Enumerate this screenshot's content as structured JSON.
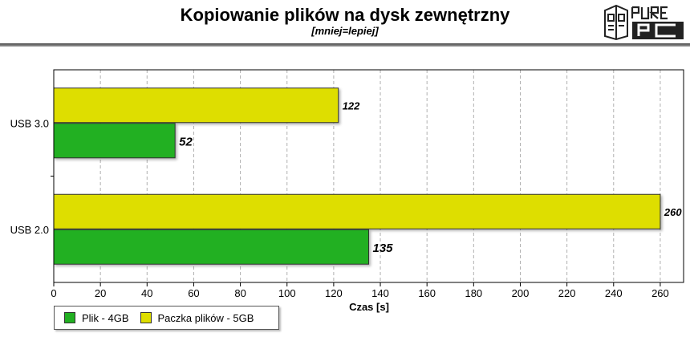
{
  "header": {
    "title": "Kopiowanie plików na dysk zewnętrzny",
    "subtitle": "[mniej=lepiej]",
    "logo_text": "PURE PC"
  },
  "legend": {
    "items": [
      {
        "label": "Plik - 4GB",
        "color": "#22b022"
      },
      {
        "label": "Paczka plików - 5GB",
        "color": "#dede00"
      }
    ]
  },
  "chart_data": {
    "type": "bar",
    "orientation": "horizontal",
    "categories": [
      "USB 3.0",
      "USB 2.0"
    ],
    "series": [
      {
        "name": "Paczka plików - 5GB",
        "values": [
          122,
          260
        ],
        "color": "#dede00"
      },
      {
        "name": "Plik - 4GB",
        "values": [
          52,
          135
        ],
        "color": "#22b022"
      }
    ],
    "xlabel": "Czas [s]",
    "ylabel": "",
    "xlim": [
      0,
      270
    ],
    "xticks": [
      0,
      20,
      40,
      60,
      80,
      100,
      120,
      140,
      160,
      180,
      200,
      220,
      240,
      260
    ],
    "grid": true,
    "legend_position": "bottom-left"
  }
}
